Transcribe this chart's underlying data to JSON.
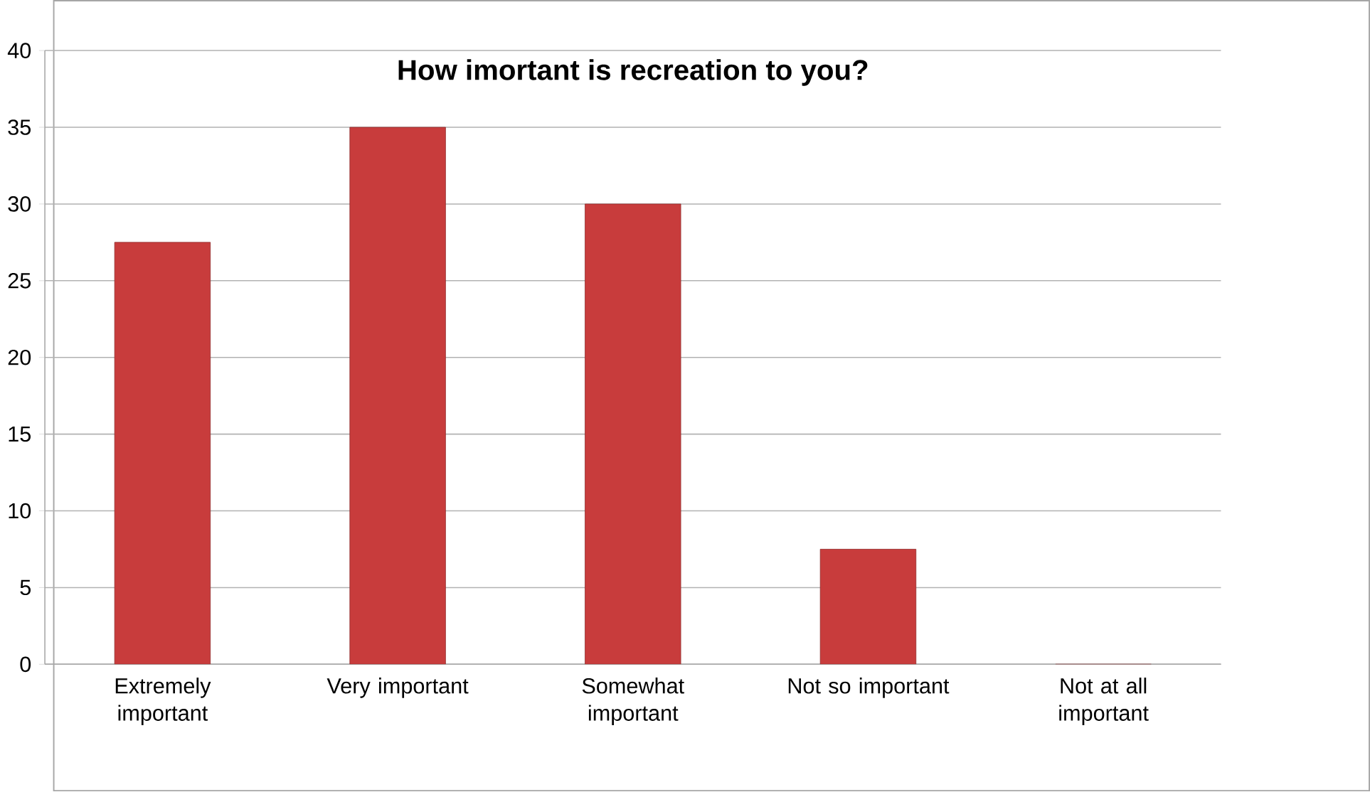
{
  "chart_data": {
    "type": "bar",
    "title": "How imortant is recreation to you?",
    "categories": [
      "Extremely important",
      "Very important",
      "Somewhat important",
      "Not so important",
      "Not at all important"
    ],
    "values": [
      27.5,
      35,
      30,
      7.5,
      0
    ],
    "color": "#c83c3c",
    "ylim": [
      0,
      40
    ],
    "yticks": [
      0,
      5,
      10,
      15,
      20,
      25,
      30,
      35,
      40
    ],
    "grid": "y"
  }
}
